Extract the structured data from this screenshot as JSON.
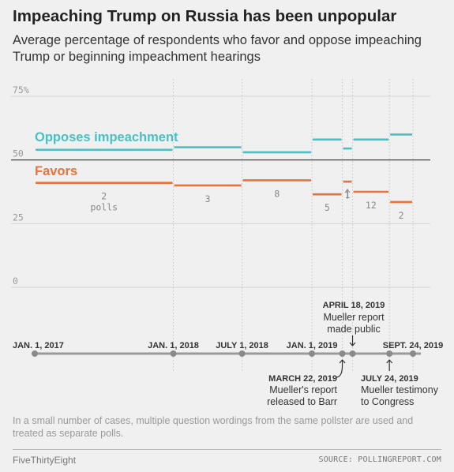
{
  "title": "Impeaching Trump on Russia has been unpopular",
  "subtitle": "Average percentage of respondents who favor and oppose impeaching Trump or beginning impeachment hearings",
  "footnote": "In a small number of cases, multiple question wordings from the same pollster are used and treated as separate polls.",
  "brand": "FiveThirtyEight",
  "source": "SOURCE: POLLINGREPORT.COM",
  "colors": {
    "opposes": "#47c1c4",
    "favors": "#ec713b",
    "axis": "#999999",
    "grid": "#d4d4d4",
    "timeline": "#9a9a9a"
  },
  "chart_data": {
    "type": "line",
    "ylim": [
      0,
      75
    ],
    "yticks": [
      {
        "value": 75,
        "label": "75%"
      },
      {
        "value": 50,
        "label": "50"
      },
      {
        "value": 25,
        "label": "25"
      },
      {
        "value": 0,
        "label": "0"
      }
    ],
    "xlim": [
      "2017-01-01",
      "2019-10-15"
    ],
    "series": [
      {
        "name": "Opposes impeachment",
        "color": "#47c1c4"
      },
      {
        "name": "Favors",
        "color": "#ec713b"
      }
    ],
    "periods": [
      {
        "start": "2017-01-01",
        "end": "2018-01-01",
        "opposes": 54,
        "favors": 41,
        "polls": "2",
        "polls_unit": "polls"
      },
      {
        "start": "2018-01-01",
        "end": "2018-07-01",
        "opposes": 55,
        "favors": 40,
        "polls": "3"
      },
      {
        "start": "2018-07-01",
        "end": "2019-01-01",
        "opposes": 53,
        "favors": 42,
        "polls": "8"
      },
      {
        "start": "2019-01-01",
        "end": "2019-03-22",
        "opposes": 58,
        "favors": 36.5,
        "polls": "5"
      },
      {
        "start": "2019-03-22",
        "end": "2019-04-18",
        "opposes": 54.5,
        "favors": 41.5,
        "polls": "1"
      },
      {
        "start": "2019-04-18",
        "end": "2019-07-24",
        "opposes": 58,
        "favors": 37.5,
        "polls": "12"
      },
      {
        "start": "2019-07-24",
        "end": "2019-09-24",
        "opposes": 60,
        "favors": 33.5,
        "polls": "2"
      }
    ],
    "timeline_dates": [
      {
        "date": "2017-01-01",
        "label": "JAN. 1, 2017"
      },
      {
        "date": "2018-01-01",
        "label": "JAN. 1, 2018"
      },
      {
        "date": "2018-07-01",
        "label": "JULY 1, 2018"
      },
      {
        "date": "2019-01-01",
        "label": "JAN. 1, 2019"
      },
      {
        "date": "2019-09-24",
        "label": "SEPT. 24, 2019"
      }
    ],
    "events": [
      {
        "date": "2019-04-18",
        "heading": "APRIL 18, 2019",
        "lines": [
          "Mueller report",
          "made public"
        ],
        "position": "above"
      },
      {
        "date": "2019-03-22",
        "heading": "MARCH 22, 2019",
        "lines": [
          "Mueller's report",
          "released to Barr"
        ],
        "position": "below-left"
      },
      {
        "date": "2019-07-24",
        "heading": "JULY 24, 2019",
        "lines": [
          "Mueller testimony",
          "to Congress"
        ],
        "position": "below-right"
      }
    ]
  }
}
